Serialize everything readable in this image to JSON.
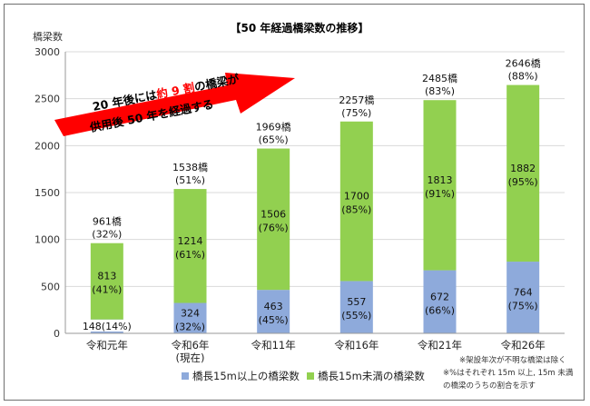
{
  "chart_data": {
    "type": "bar",
    "stacked": true,
    "title": "【50 年経過橋梁数の推移】",
    "ylabel": "橋梁数",
    "xlabel": "",
    "ylim": [
      0,
      3000
    ],
    "yticks": [
      "0",
      "500",
      "1000",
      "1500",
      "2000",
      "2500",
      "3000"
    ],
    "yticks_values": [
      0,
      500,
      1000,
      1500,
      2000,
      2500,
      3000
    ],
    "grid": true,
    "legend_position": "bottom",
    "categories": [
      {
        "line1": "令和元年",
        "line2": ""
      },
      {
        "line1": "令和6年",
        "line2": "(現在)"
      },
      {
        "line1": "令和11年",
        "line2": ""
      },
      {
        "line1": "令和16年",
        "line2": ""
      },
      {
        "line1": "令和21年",
        "line2": ""
      },
      {
        "line1": "令和26年",
        "line2": ""
      }
    ],
    "series": [
      {
        "name": "橋長15m以上の橋梁数",
        "color": "#8eaadb",
        "values": [
          148,
          324,
          463,
          557,
          672,
          764
        ],
        "labels": [
          {
            "line1": "148(14%)",
            "line2": ""
          },
          {
            "line1": "324",
            "line2": "(32%)"
          },
          {
            "line1": "463",
            "line2": "(45%)"
          },
          {
            "line1": "557",
            "line2": "(55%)"
          },
          {
            "line1": "672",
            "line2": "(66%)"
          },
          {
            "line1": "764",
            "line2": "(75%)"
          }
        ]
      },
      {
        "name": "橋長15m未満の橋梁数",
        "color": "#92d050",
        "values": [
          813,
          1214,
          1506,
          1700,
          1813,
          1882
        ],
        "labels": [
          {
            "line1": "813",
            "line2": "(41%)"
          },
          {
            "line1": "1214",
            "line2": "(61%)"
          },
          {
            "line1": "1506",
            "line2": "(76%)"
          },
          {
            "line1": "1700",
            "line2": "(85%)"
          },
          {
            "line1": "1813",
            "line2": "(91%)"
          },
          {
            "line1": "1882",
            "line2": "(95%)"
          }
        ]
      }
    ],
    "totals": [
      {
        "line1": "961橋",
        "line2": "(32%)"
      },
      {
        "line1": "1538橋",
        "line2": "(51%)"
      },
      {
        "line1": "1969橋",
        "line2": "(65%)"
      },
      {
        "line1": "2257橋",
        "line2": "(75%)"
      },
      {
        "line1": "2485橋",
        "line2": "(83%)"
      },
      {
        "line1": "2646橋",
        "line2": "(88%)"
      }
    ],
    "annotation": {
      "line1_parts": [
        "20 年後には",
        "約 9 割",
        "の橋梁が"
      ],
      "line2": "供用後 50 年を経過する",
      "arrow_color": "#ff0000",
      "highlight_color": "#ff0000"
    },
    "notes": [
      "※架設年次が不明な橋梁は除く",
      "※%はそれぞれ 15m 以上, 15m 未満",
      "の橋梁のうちの割合を示す"
    ]
  }
}
